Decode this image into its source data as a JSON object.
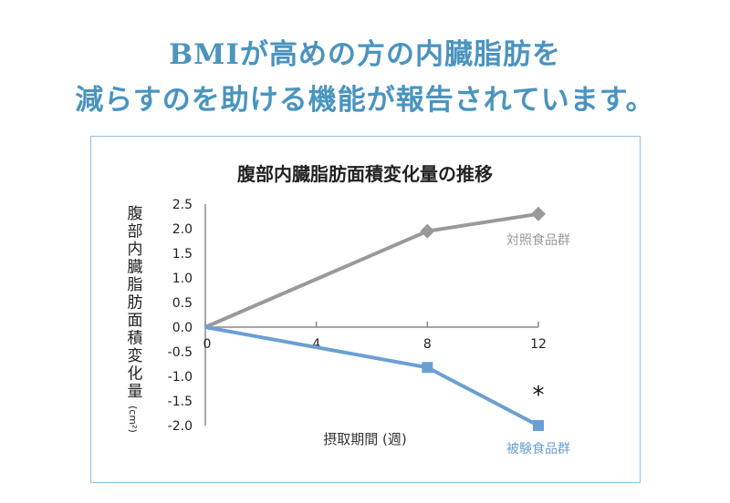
{
  "headline": {
    "line1": "BMIが高めの方の内臓脂肪を",
    "line2": "減らすのを助ける機能が報告されています。"
  },
  "chart_data": {
    "type": "line",
    "title": "腹部内臓脂肪面積変化量の推移",
    "xlabel": "摂取期間 (週)",
    "ylabel": "腹部内臓脂肪面積変化量",
    "ylabel_unit": "(cm²)",
    "x_ticks": [
      "0",
      "4",
      "8",
      "12"
    ],
    "y_ticks": [
      "2.5",
      "2.0",
      "1.5",
      "1.0",
      "0.5",
      "0.0",
      "-0.5",
      "-1.0",
      "-1.5",
      "-2.0"
    ],
    "xlim": [
      0,
      12
    ],
    "ylim": [
      -2.0,
      2.5
    ],
    "grid": false,
    "series": [
      {
        "name": "対照食品群",
        "x": [
          0,
          8,
          12
        ],
        "values": [
          0,
          1.95,
          2.3
        ],
        "color": "#999999",
        "marker": "diamond"
      },
      {
        "name": "被験食品群",
        "x": [
          0,
          8,
          12
        ],
        "values": [
          0,
          -0.82,
          -2.0
        ],
        "color": "#6a9fd2",
        "marker": "square"
      }
    ],
    "annotation": "*"
  }
}
